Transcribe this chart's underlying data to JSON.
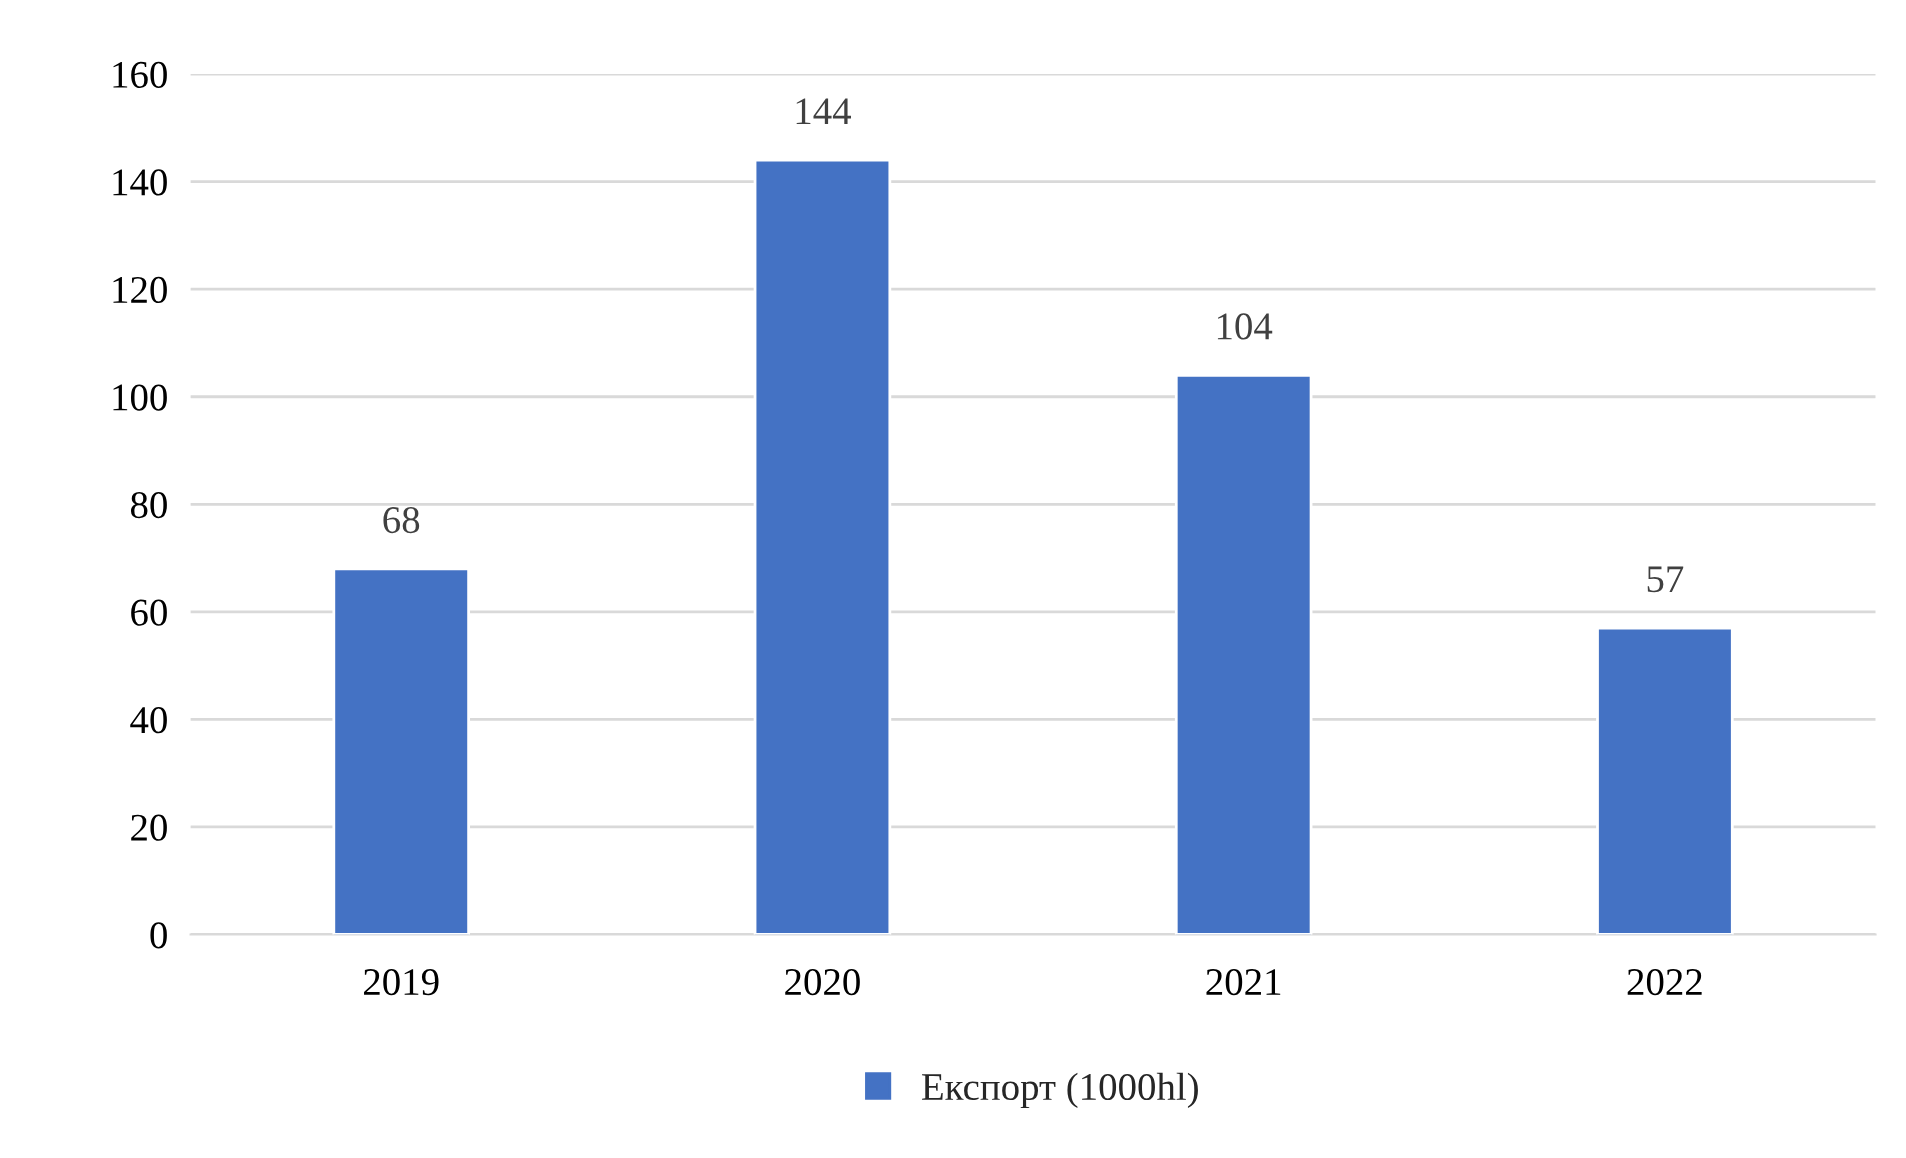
{
  "chart_data": {
    "type": "bar",
    "categories": [
      "2019",
      "2020",
      "2021",
      "2022"
    ],
    "series": [
      {
        "name": "Експорт (1000hl)",
        "color": "#4472c4",
        "values": [
          68,
          144,
          104,
          57
        ]
      }
    ],
    "ylim": [
      0,
      160
    ],
    "yticks": [
      0,
      20,
      40,
      60,
      80,
      100,
      120,
      140,
      160
    ],
    "grid": "y",
    "legend": "bottom",
    "data_labels": true
  }
}
